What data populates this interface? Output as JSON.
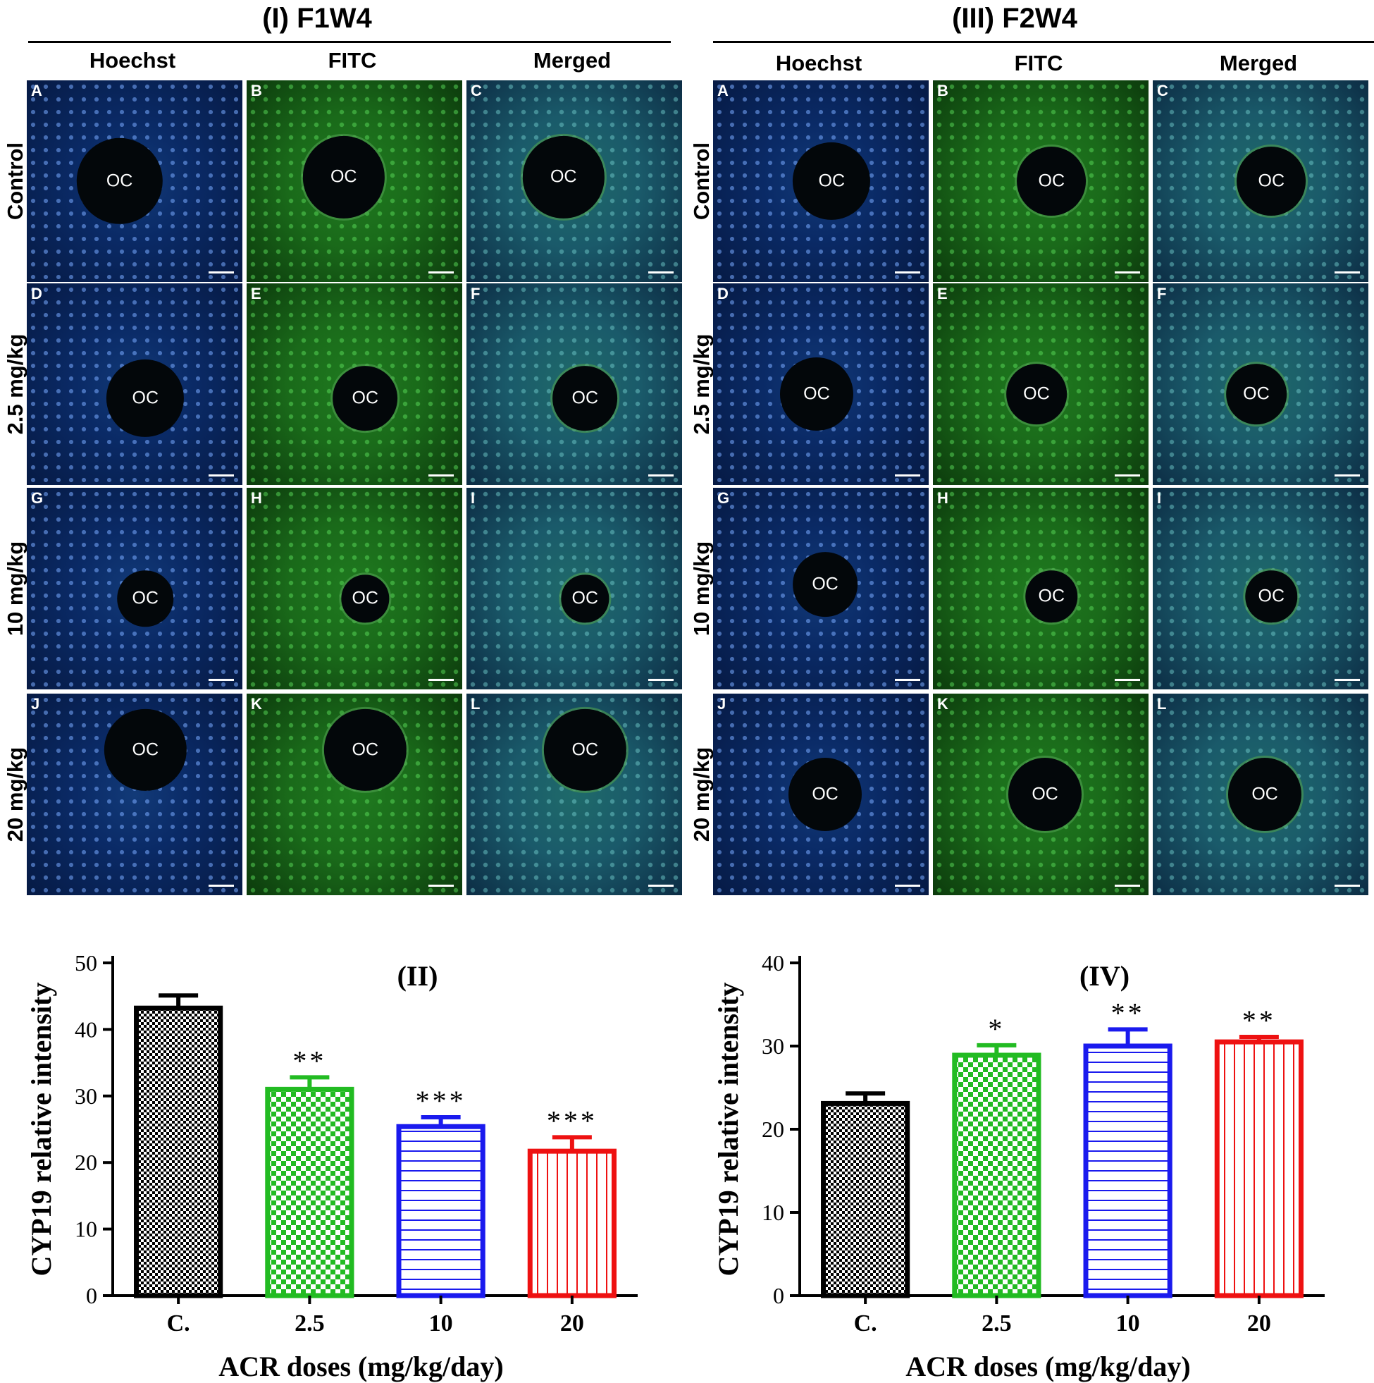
{
  "figure": {
    "panels": [
      {
        "title": "(I) F1W4"
      },
      {
        "title": "(III) F2W4"
      }
    ],
    "columns": [
      "Hoechst",
      "FITC",
      "Merged"
    ],
    "rows": [
      "Control",
      "2.5 mg/kg",
      "10 mg/kg",
      "20 mg/kg"
    ],
    "letters": [
      "A",
      "B",
      "C",
      "D",
      "E",
      "F",
      "G",
      "H",
      "I",
      "J",
      "K",
      "L"
    ],
    "oocyte_label": "OC",
    "channel_colors": {
      "Hoechst": "#0a2a66",
      "FITC": "#1a6a1a",
      "Merged": "#1a5a6a"
    }
  },
  "chart_data": [
    {
      "type": "bar",
      "panel_label": "(II)",
      "categories": [
        "C.",
        "2.5",
        "10",
        "20"
      ],
      "values": [
        43.2,
        31.0,
        25.4,
        21.7
      ],
      "errors": [
        1.9,
        1.8,
        1.4,
        2.1
      ],
      "significance": [
        "",
        "**",
        "***",
        "***"
      ],
      "xlabel": "ACR doses (mg/kg/day)",
      "ylabel": "CYP19 relative intensity",
      "ylim": [
        0,
        50
      ],
      "yticks": [
        0,
        10,
        20,
        30,
        40,
        50
      ],
      "colors": [
        "#000000",
        "#22bb22",
        "#1a1aee",
        "#ee1111"
      ],
      "patterns": [
        "checker-fine",
        "checker",
        "horizontal",
        "vertical"
      ]
    },
    {
      "type": "bar",
      "panel_label": "(IV)",
      "categories": [
        "C.",
        "2.5",
        "10",
        "20"
      ],
      "values": [
        23.1,
        28.9,
        30.0,
        30.5
      ],
      "errors": [
        1.2,
        1.2,
        2.0,
        0.6
      ],
      "significance": [
        "",
        "*",
        "**",
        "**"
      ],
      "xlabel": "ACR doses (mg/kg/day)",
      "ylabel": "CYP19 relative intensity",
      "ylim": [
        0,
        40
      ],
      "yticks": [
        0,
        10,
        20,
        30,
        40
      ],
      "colors": [
        "#000000",
        "#22bb22",
        "#1a1aee",
        "#ee1111"
      ],
      "patterns": [
        "checker-fine",
        "checker",
        "horizontal",
        "vertical"
      ]
    }
  ]
}
